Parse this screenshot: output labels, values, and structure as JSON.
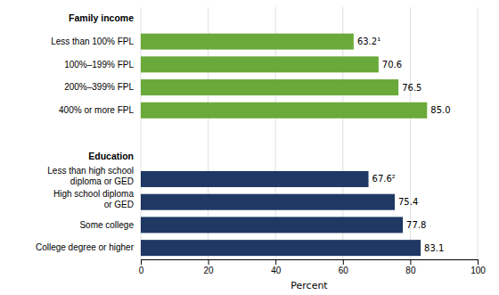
{
  "chart_data": {
    "type": "bar",
    "orientation": "horizontal",
    "categories": [
      "Family income",
      "Less than 100% FPL",
      "100%–199% FPL",
      "200%–399% FPL",
      "400% or more FPL",
      null,
      "Education",
      "Less than high school\ndiploma or GED",
      "High school diploma\nor GED",
      "Some college",
      "College degree or higher"
    ],
    "values": [
      null,
      63.2,
      70.6,
      76.5,
      85.0,
      null,
      null,
      67.6,
      75.4,
      77.8,
      83.1
    ],
    "value_labels": [
      null,
      "63.2¹",
      "70.6",
      "76.5",
      "85.0",
      null,
      null,
      "67.6²",
      "75.4",
      "77.8",
      "83.1"
    ],
    "colors": [
      null,
      "#6aaa3a",
      "#6aaa3a",
      "#6aaa3a",
      "#6aaa3a",
      null,
      null,
      "#1f3864",
      "#1f3864",
      "#1f3864",
      "#1f3864"
    ],
    "data_labels": true,
    "xlabel": "Percent",
    "xlim": [
      0,
      100
    ],
    "xticks": [
      0,
      20,
      40,
      60,
      80,
      100
    ],
    "grid": true
  }
}
